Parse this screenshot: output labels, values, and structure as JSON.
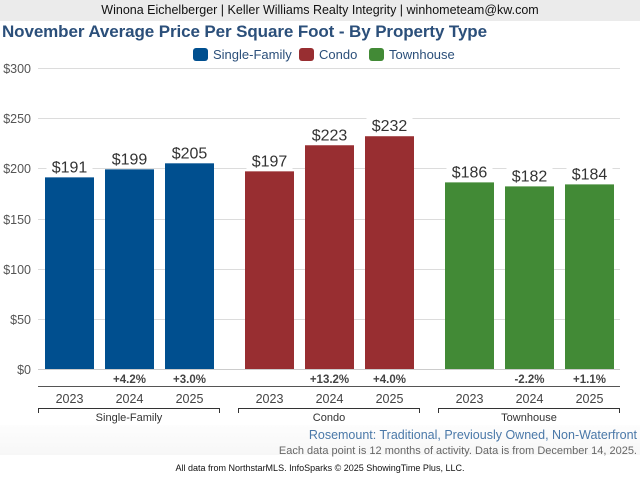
{
  "header": {
    "text": "Winona Eichelberger | Keller Williams Realty Integrity | winhometeam@kw.com"
  },
  "title": "November Average Price Per Square Foot - By Property Type",
  "legend": [
    {
      "label": "Single-Family",
      "color": "#004f8f"
    },
    {
      "label": "Condo",
      "color": "#982e31"
    },
    {
      "label": "Townhouse",
      "color": "#428a36"
    }
  ],
  "subtitle": "Rosemount: Traditional, Previously Owned, Non-Waterfront",
  "note": "Each data point is 12 months of activity. Data is from December 14, 2025.",
  "credit": "All data from NorthstarMLS. InfoSparks © 2025 ShowingTime Plus, LLC.",
  "chart_data": {
    "type": "bar",
    "title": "November Average Price Per Square Foot - By Property Type",
    "xlabel": "",
    "ylabel": "",
    "ylim": [
      0,
      300
    ],
    "yticks": [
      0,
      50,
      100,
      150,
      200,
      250,
      300
    ],
    "ytick_labels": [
      "$0",
      "$50",
      "$100",
      "$150",
      "$200",
      "$250",
      "$300"
    ],
    "grid": true,
    "legend_position": "top-center",
    "categories": [
      "2023",
      "2024",
      "2025"
    ],
    "groups": [
      {
        "name": "Single-Family",
        "color": "#004f8f",
        "values": [
          191,
          199,
          205
        ],
        "value_labels": [
          "$191",
          "$199",
          "$205"
        ],
        "changes": [
          "",
          "+4.2%",
          "+3.0%"
        ]
      },
      {
        "name": "Condo",
        "color": "#982e31",
        "values": [
          197,
          223,
          232
        ],
        "value_labels": [
          "$197",
          "$223",
          "$232"
        ],
        "changes": [
          "",
          "+13.2%",
          "+4.0%"
        ]
      },
      {
        "name": "Townhouse",
        "color": "#428a36",
        "values": [
          186,
          182,
          184
        ],
        "value_labels": [
          "$186",
          "$182",
          "$184"
        ],
        "changes": [
          "",
          "-2.2%",
          "+1.1%"
        ]
      }
    ]
  }
}
